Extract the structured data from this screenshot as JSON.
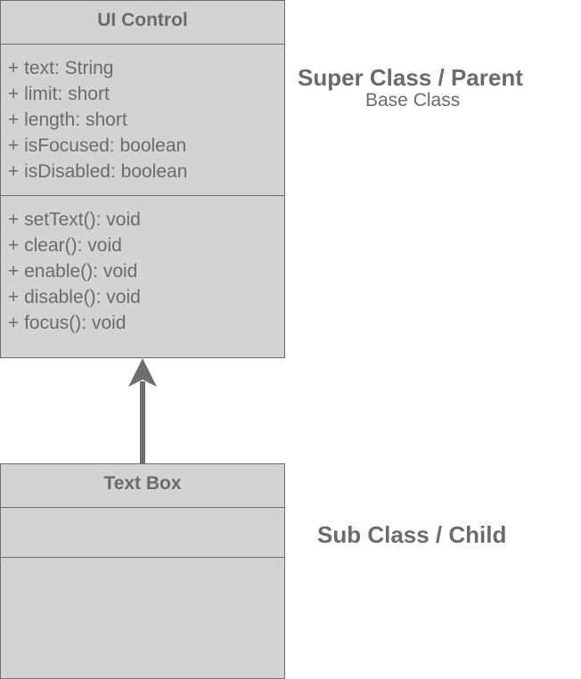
{
  "parent_class": {
    "name": "UI Control",
    "attributes": [
      "+ text: String",
      "+ limit: short",
      "+ length: short",
      "+ isFocused: boolean",
      "+ isDisabled: boolean"
    ],
    "methods": [
      "+ setText(): void",
      "+ clear(): void",
      "+ enable(): void",
      "+ disable(): void",
      "+ focus(): void"
    ]
  },
  "child_class": {
    "name": "Text Box",
    "attributes": [],
    "methods": []
  },
  "labels": {
    "parent_title": "Super Class / Parent",
    "parent_subtitle": "Base Class",
    "child_title": "Sub Class / Child"
  },
  "colors": {
    "box_fill": "#d3d3d3",
    "border": "#6e6e6e",
    "text": "#6b6b6b",
    "arrow": "#6e6e6e"
  }
}
